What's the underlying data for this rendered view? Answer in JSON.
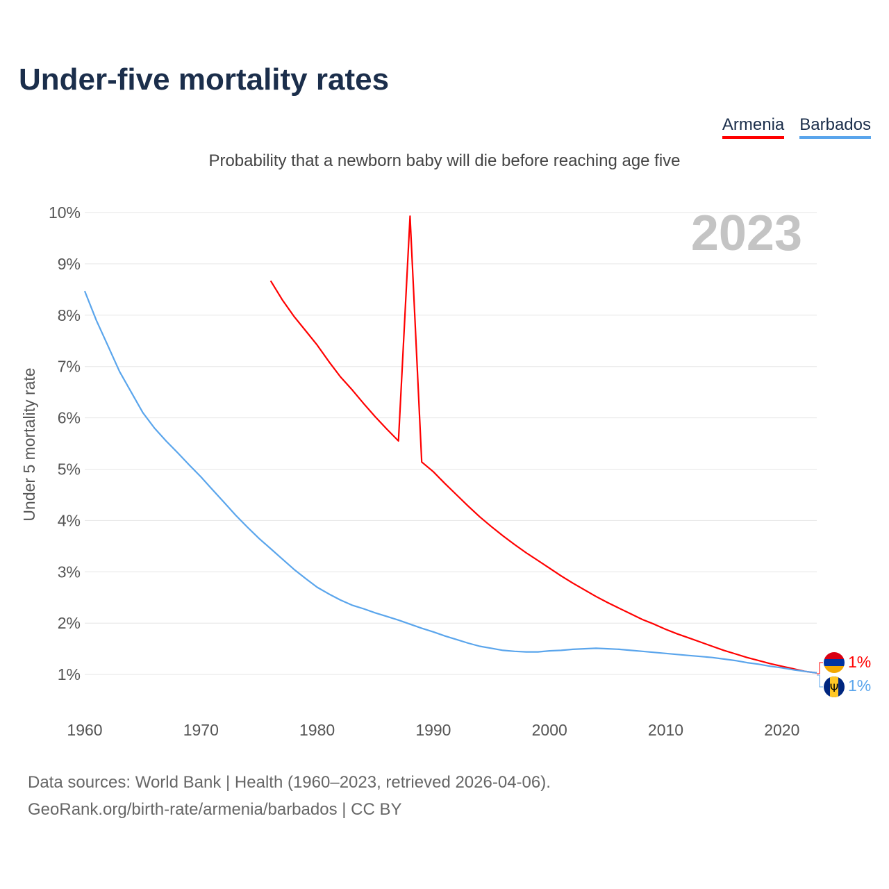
{
  "title": "Under-five mortality rates",
  "subtitle": "Probability that a newborn baby will die before reaching age five",
  "legend": [
    {
      "label": "Armenia",
      "color": "#ff0000"
    },
    {
      "label": "Barbados",
      "color": "#5aa5ec"
    }
  ],
  "year_label": "2023",
  "source_line1": "Data sources: World Bank | Health (1960–2023, retrieved 2026-04-06).",
  "source_line2": "GeoRank.org/birth-rate/armenia/barbados | CC BY",
  "chart_data": {
    "type": "line",
    "title": "Under-five mortality rates",
    "xlabel": "",
    "ylabel": "Under 5 mortality rate",
    "xlim": [
      1960,
      2023
    ],
    "ylim": [
      0.5,
      10
    ],
    "xticks": [
      "1960",
      "1970",
      "1980",
      "1990",
      "2000",
      "2010",
      "2020"
    ],
    "yticks": [
      "1%",
      "2%",
      "3%",
      "4%",
      "5%",
      "6%",
      "7%",
      "8%",
      "9%",
      "10%"
    ],
    "end_labels": [
      "1%",
      "1%"
    ],
    "series": [
      {
        "name": "Armenia",
        "color": "#ff0000",
        "start_year": 1976,
        "values": [
          8.67,
          8.3,
          7.98,
          7.7,
          7.42,
          7.1,
          6.8,
          6.55,
          6.28,
          6.02,
          5.78,
          5.55,
          9.93,
          5.14,
          4.95,
          4.72,
          4.5,
          4.28,
          4.07,
          3.88,
          3.7,
          3.53,
          3.37,
          3.22,
          3.07,
          2.92,
          2.78,
          2.65,
          2.52,
          2.4,
          2.29,
          2.18,
          2.07,
          1.98,
          1.88,
          1.79,
          1.71,
          1.63,
          1.55,
          1.47,
          1.4,
          1.33,
          1.27,
          1.21,
          1.16,
          1.11,
          1.06,
          1.03
        ]
      },
      {
        "name": "Barbados",
        "color": "#5aa5ec",
        "start_year": 1960,
        "values": [
          8.47,
          7.9,
          7.4,
          6.9,
          6.5,
          6.1,
          5.8,
          5.55,
          5.32,
          5.08,
          4.85,
          4.6,
          4.35,
          4.1,
          3.87,
          3.65,
          3.45,
          3.25,
          3.05,
          2.87,
          2.7,
          2.57,
          2.45,
          2.35,
          2.28,
          2.2,
          2.13,
          2.06,
          1.98,
          1.9,
          1.83,
          1.75,
          1.68,
          1.61,
          1.55,
          1.51,
          1.47,
          1.45,
          1.44,
          1.44,
          1.46,
          1.47,
          1.49,
          1.5,
          1.51,
          1.5,
          1.49,
          1.47,
          1.45,
          1.43,
          1.41,
          1.39,
          1.37,
          1.35,
          1.33,
          1.3,
          1.27,
          1.23,
          1.2,
          1.16,
          1.13,
          1.09,
          1.06,
          1.03
        ]
      }
    ]
  }
}
